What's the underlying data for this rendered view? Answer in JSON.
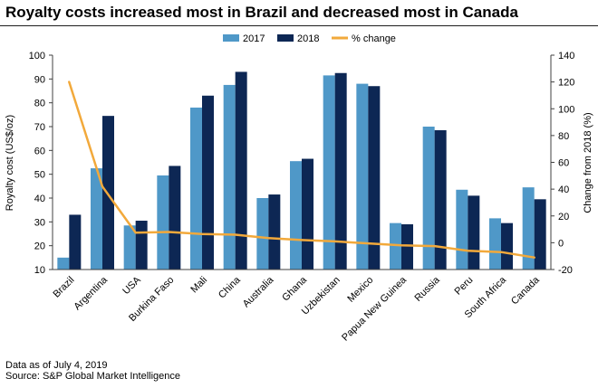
{
  "title": "Royalty costs increased most in Brazil and decreased most in Canada",
  "footnote": "Data as of July 4, 2019",
  "source": "Source: S&P Global Market Intelligence",
  "colors": {
    "series_2017": "#4f98c8",
    "series_2018": "#0d2754",
    "pct_change": "#f2a93b",
    "grid": "#d9d9d9",
    "axis": "#404040"
  },
  "chart_data": {
    "type": "bar",
    "categories": [
      "Brazil",
      "Argentina",
      "USA",
      "Burkina Faso",
      "Mali",
      "China",
      "Australia",
      "Ghana",
      "Uzbekistan",
      "Mexico",
      "Papua New Guinea",
      "Russia",
      "Peru",
      "South Africa",
      "Canada"
    ],
    "series": [
      {
        "name": "2017",
        "axis": "left",
        "values": [
          15,
          52.5,
          28.5,
          49.5,
          78,
          87.5,
          40,
          55.5,
          91.5,
          88,
          29.5,
          70,
          43.5,
          31.5,
          44.5
        ]
      },
      {
        "name": "2018",
        "axis": "left",
        "values": [
          33,
          74.5,
          30.5,
          53.5,
          83,
          93,
          41.5,
          56.5,
          92.5,
          87,
          29,
          68.5,
          41,
          29.5,
          39.5
        ]
      }
    ],
    "line_series": {
      "name": "% change",
      "axis": "right",
      "values": [
        120,
        42,
        7.5,
        8,
        6.5,
        6,
        3.5,
        2,
        1,
        -0.5,
        -2,
        -2.5,
        -6,
        -7,
        -11
      ]
    },
    "ylabel": "Royalty cost (US$/oz)",
    "ylabel_right": "Change from 2018 (%)",
    "ylim": [
      10,
      100
    ],
    "ylim_right": [
      -20,
      140
    ],
    "yticks": [
      "10",
      "20",
      "30",
      "40",
      "50",
      "60",
      "70",
      "80",
      "90",
      "100"
    ],
    "yticks_right": [
      "-20",
      "0",
      "20",
      "40",
      "60",
      "80",
      "100",
      "120",
      "140"
    ],
    "legend_position": "top-center",
    "grid": false
  }
}
